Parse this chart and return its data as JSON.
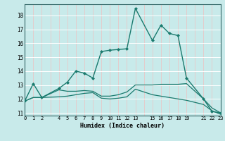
{
  "xlabel": "Humidex (Indice chaleur)",
  "bg_color": "#c8eaea",
  "grid_color_h": "#ffffff",
  "grid_color_v": "#e8c8c8",
  "line_color": "#1a7a6e",
  "xlim": [
    0,
    23
  ],
  "ylim": [
    10.8,
    18.8
  ],
  "yticks": [
    11,
    12,
    13,
    14,
    15,
    16,
    17,
    18
  ],
  "xticks": [
    0,
    1,
    2,
    3,
    4,
    5,
    6,
    7,
    8,
    9,
    10,
    11,
    12,
    13,
    14,
    15,
    16,
    17,
    18,
    19,
    20,
    21,
    22,
    23
  ],
  "xtick_labels": [
    "0",
    "1",
    "2",
    "",
    "4",
    "5",
    "6",
    "7",
    "8",
    "9",
    "10",
    "11",
    "12",
    "13",
    "",
    "15",
    "16",
    "17",
    "18",
    "19",
    "",
    "21",
    "22",
    "23"
  ],
  "series": [
    {
      "x": [
        0,
        1,
        2,
        4,
        5,
        6,
        7,
        8,
        9,
        10,
        11,
        12,
        13,
        15,
        16,
        17,
        18,
        19,
        21,
        22,
        23
      ],
      "y": [
        11.85,
        13.1,
        12.1,
        12.75,
        13.2,
        14.0,
        13.85,
        13.5,
        15.4,
        15.5,
        15.55,
        15.6,
        18.5,
        16.2,
        17.3,
        16.7,
        16.55,
        13.5,
        12.0,
        11.1,
        11.0
      ],
      "marker": "D",
      "markersize": 2.0,
      "linewidth": 1.0
    },
    {
      "x": [
        0,
        1,
        2,
        4,
        5,
        6,
        7,
        8,
        9,
        10,
        11,
        12,
        13,
        15,
        16,
        17,
        18,
        19,
        21,
        22,
        23
      ],
      "y": [
        11.85,
        12.1,
        12.1,
        12.65,
        12.55,
        12.55,
        12.6,
        12.55,
        12.2,
        12.2,
        12.3,
        12.5,
        13.0,
        13.0,
        13.05,
        13.05,
        13.05,
        13.1,
        12.0,
        11.35,
        11.0
      ],
      "marker": null,
      "linewidth": 0.9
    },
    {
      "x": [
        0,
        1,
        2,
        4,
        5,
        6,
        7,
        8,
        9,
        10,
        11,
        12,
        13,
        15,
        16,
        17,
        18,
        19,
        21,
        22,
        23
      ],
      "y": [
        11.85,
        12.1,
        12.1,
        12.15,
        12.2,
        12.3,
        12.4,
        12.45,
        12.05,
        12.0,
        12.05,
        12.15,
        12.7,
        12.3,
        12.2,
        12.1,
        12.0,
        11.9,
        11.6,
        11.15,
        10.9
      ],
      "marker": null,
      "linewidth": 0.9
    }
  ]
}
